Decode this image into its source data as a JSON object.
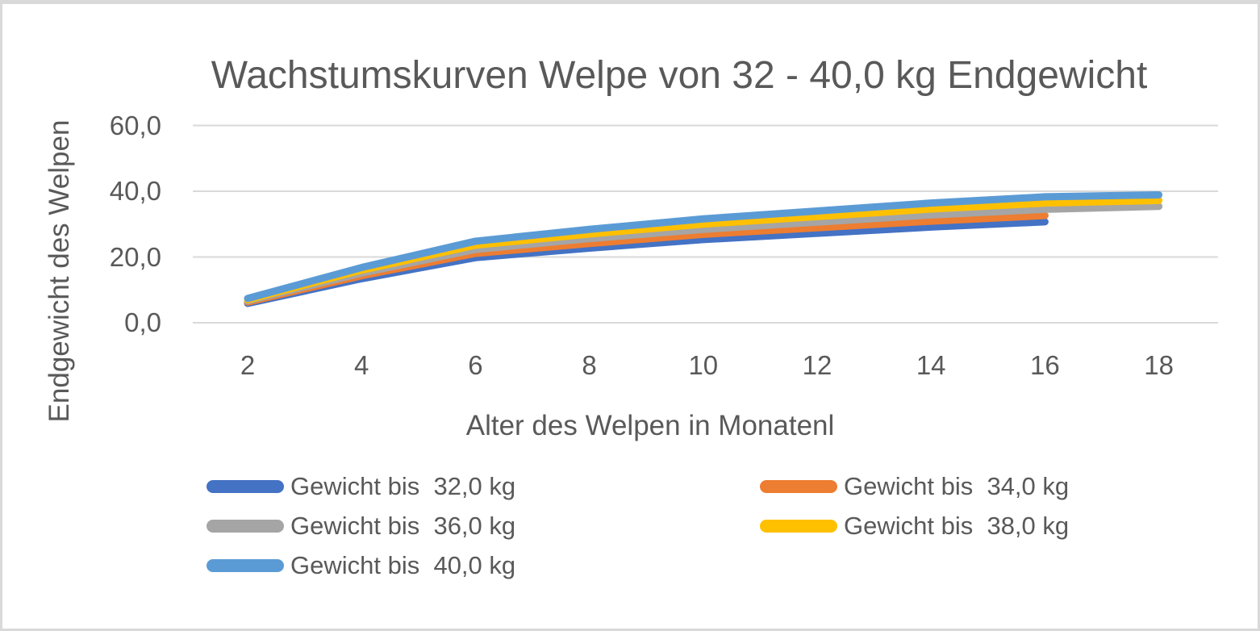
{
  "chart_data": {
    "type": "line",
    "title": "Wachstumskurven Welpe von 32 - 40,0 kg Endgewicht",
    "xlabel": "Alter des Welpen in Monatenl",
    "ylabel": "Endgewicht des Welpen",
    "x": [
      2,
      4,
      6,
      8,
      10,
      12,
      14,
      16,
      18
    ],
    "x_tick_labels": [
      "2",
      "4",
      "6",
      "8",
      "10",
      "12",
      "14",
      "16",
      "18"
    ],
    "y_ticks": [
      0,
      20,
      40,
      60
    ],
    "y_tick_labels": [
      "0,0",
      "20,0",
      "40,0",
      "60,0"
    ],
    "xlim": [
      1,
      19
    ],
    "ylim": [
      0,
      65
    ],
    "grid": true,
    "legend_position": "bottom",
    "colors": {
      "axis_text": "#595959",
      "gridline": "#d9d9d9",
      "chart_border": "#d9d9d9",
      "background": "#ffffff"
    },
    "series": [
      {
        "name": "Gewicht bis  32,0 kg",
        "color": "#4472C4",
        "values": [
          5.9,
          13.4,
          19.8,
          22.7,
          25.3,
          27.2,
          29.1,
          30.7,
          null
        ]
      },
      {
        "name": "Gewicht bis  34,0 kg",
        "color": "#ED7D31",
        "values": [
          6.3,
          14.3,
          21.1,
          24.1,
          26.9,
          28.9,
          30.9,
          32.6,
          null
        ]
      },
      {
        "name": "Gewicht bis  36,0 kg",
        "color": "#A5A5A5",
        "values": [
          6.7,
          15.1,
          22.3,
          25.6,
          28.4,
          30.6,
          32.8,
          34.5,
          35.4
        ]
      },
      {
        "name": "Gewicht bis  38,0 kg",
        "color": "#FFC000",
        "values": [
          7.0,
          16.0,
          23.6,
          27.0,
          30.0,
          32.3,
          34.6,
          36.4,
          37.2
        ]
      },
      {
        "name": "Gewicht bis  40,0 kg",
        "color": "#5B9BD5",
        "values": [
          7.4,
          16.8,
          24.8,
          28.4,
          31.6,
          34.0,
          36.4,
          38.3,
          38.9
        ]
      }
    ]
  }
}
